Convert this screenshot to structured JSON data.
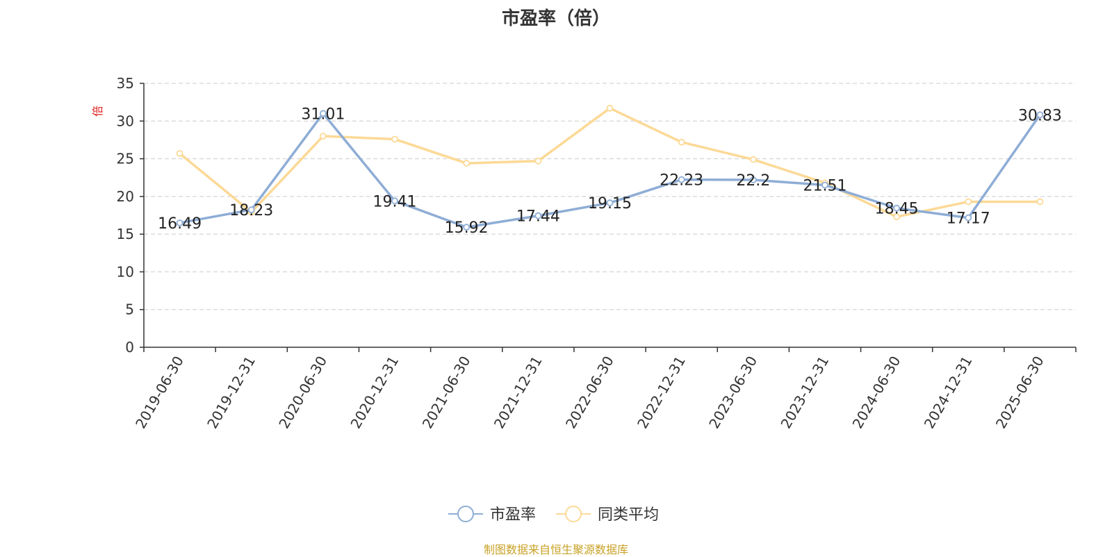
{
  "chart_data": {
    "type": "line",
    "title": "市盈率（倍）",
    "ylabel": "倍",
    "xlabel": "",
    "categories": [
      "2019-06-30",
      "2019-12-31",
      "2020-06-30",
      "2020-12-31",
      "2021-06-30",
      "2021-12-31",
      "2022-06-30",
      "2022-12-31",
      "2023-06-30",
      "2023-12-31",
      "2024-06-30",
      "2024-12-31",
      "2025-06-30"
    ],
    "ylim": [
      0,
      35
    ],
    "yticks": [
      "0",
      "5",
      "10",
      "15",
      "20",
      "25",
      "30",
      "35"
    ],
    "grid": true,
    "legend_position": "bottom",
    "series": [
      {
        "name": "市盈率",
        "color": "#8eadd6",
        "values": [
          16.49,
          18.23,
          31.01,
          19.41,
          15.92,
          17.44,
          19.15,
          22.23,
          22.2,
          21.51,
          18.45,
          17.17,
          30.83
        ],
        "labels": [
          "16.49",
          "18.23",
          "31.01",
          "19.41",
          "15.92",
          "17.44",
          "19.15",
          "22.23",
          "22.2",
          "21.51",
          "18.45",
          "17.17",
          "30.83"
        ]
      },
      {
        "name": "同类平均",
        "color": "#fcd996",
        "values": [
          25.7,
          17.9,
          28.0,
          27.6,
          24.4,
          24.7,
          31.7,
          27.2,
          24.9,
          21.8,
          17.3,
          19.3,
          19.3
        ]
      }
    ]
  },
  "source_note": "制图数据来自恒生聚源数据库",
  "colors": {
    "axis": "#333333",
    "grid": "#cccccc",
    "ylabel": "#e02020",
    "source": "#c9a227"
  }
}
